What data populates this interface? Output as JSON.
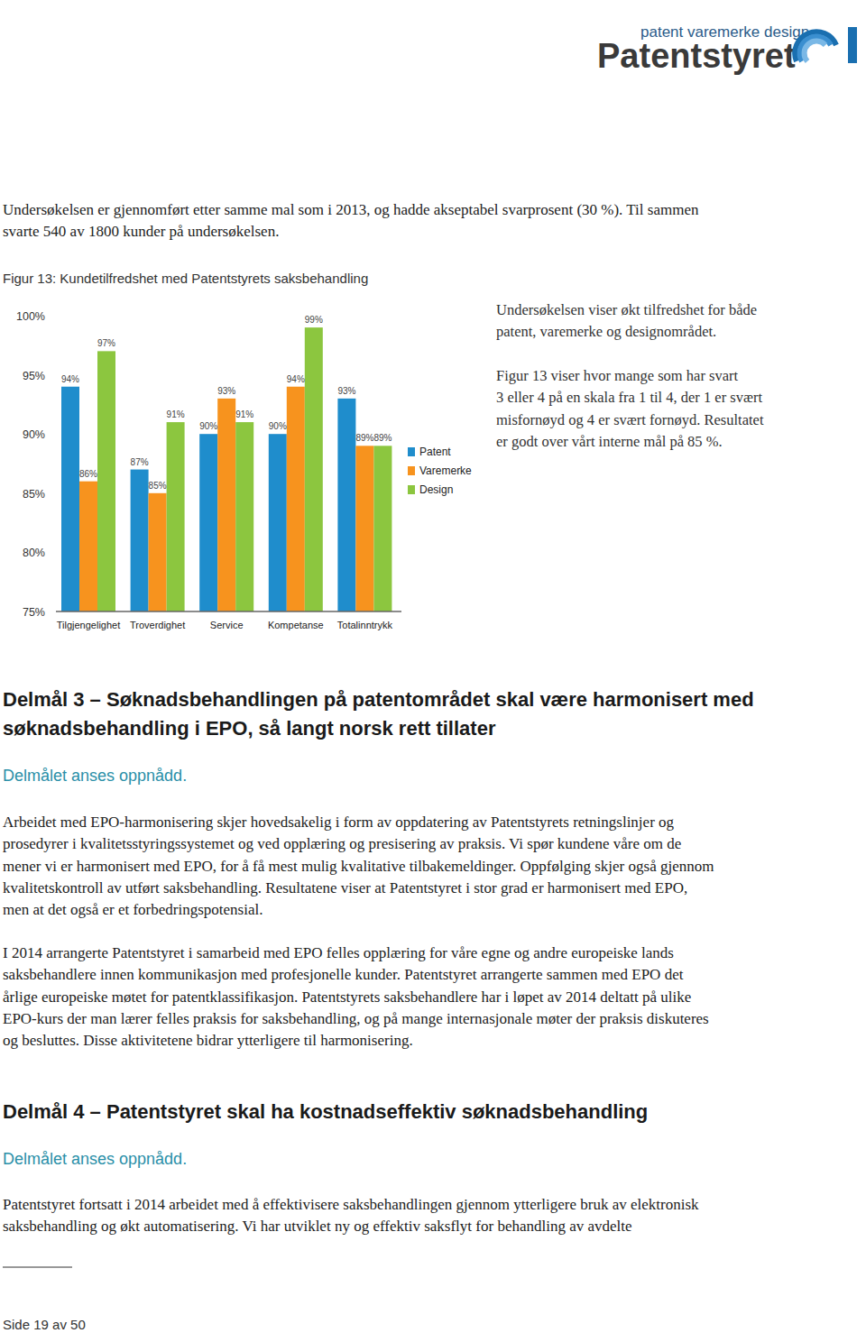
{
  "header": {
    "tagline": "patent varemerke design",
    "brand": "Patentstyret"
  },
  "intro": [
    "Undersøkelsen er gjennomført etter samme mal som i 2013, og hadde akseptabel svarprosent (30 %). Til sammen",
    "svarte 540 av 1800 kunder på undersøkelsen."
  ],
  "chart_data": {
    "type": "bar",
    "title": "Figur 13: Kundetilfredshet med Patentstyrets saksbehandling",
    "categories": [
      "Tilgjengelighet",
      "Troverdighet",
      "Service",
      "Kompetanse",
      "Totalinntrykk"
    ],
    "series": [
      {
        "name": "Patent",
        "color": "#1f8dcc",
        "values": [
          94,
          87,
          90,
          90,
          93
        ],
        "value_labels": [
          "94%",
          "87%",
          "90%",
          "90%",
          "93%"
        ]
      },
      {
        "name": "Varemerke",
        "color": "#f7931e",
        "values": [
          86,
          85,
          93,
          94,
          89
        ],
        "value_labels": [
          "86%",
          "85%",
          "93%",
          "94%",
          "89%"
        ]
      },
      {
        "name": "Design",
        "color": "#8cc63f",
        "values": [
          97,
          91,
          91,
          99,
          89
        ],
        "value_labels": [
          "97%",
          "91%",
          "91%",
          "99%",
          "89%"
        ]
      }
    ],
    "ylim": [
      75,
      100
    ],
    "yticks": [
      {
        "value": 75,
        "label": "75%"
      },
      {
        "value": 80,
        "label": "80%"
      },
      {
        "value": 85,
        "label": "85%"
      },
      {
        "value": 90,
        "label": "90%"
      },
      {
        "value": 95,
        "label": "95%"
      },
      {
        "value": 100,
        "label": "100%"
      }
    ],
    "grid": false,
    "legend": "right",
    "data_labels": true
  },
  "side_text": {
    "paragraphs": [
      [
        "Undersøkelsen viser økt tilfredshet for både",
        "patent, varemerke og designområdet."
      ],
      [
        "Figur 13 viser hvor mange som har svart",
        "3 eller 4 på en skala fra 1 til 4, der 1 er svært",
        "misfornøyd og 4 er svært fornøyd. Resultatet",
        "er godt over vårt interne mål på 85 %."
      ]
    ]
  },
  "sections": [
    {
      "heading": [
        "Delmål 3 – Søknadsbehandlingen på patentområdet skal være harmonisert med",
        "søknadsbehandling i EPO, så langt norsk rett tillater"
      ],
      "status": "Delmålet anses oppnådd.",
      "paragraphs": [
        [
          "Arbeidet med EPO-harmonisering skjer hovedsakelig i form av oppdatering av Patentstyrets retningslinjer og",
          "prosedyrer i kvalitetsstyringssystemet og ved opplæring og presisering av praksis. Vi spør kundene våre om de",
          "mener vi er harmonisert med EPO, for å få mest mulig kvalitative tilbakemeldinger. Oppfølging skjer også gjennom",
          "kvalitetskontroll av utført saksbehandling. Resultatene viser at Patentstyret i stor grad er harmonisert med EPO,",
          "men at det også er et forbedringspotensial."
        ],
        [
          "I 2014 arrangerte Patentstyret i samarbeid med EPO felles opplæring for våre egne og andre europeiske lands",
          "saksbehandlere innen kommunikasjon med profesjonelle kunder. Patentstyret arrangerte sammen med EPO det",
          "årlige europeiske møtet for patentklassifikasjon. Patentstyrets saksbehandlere har i løpet av 2014 deltatt på ulike",
          "EPO-kurs der man lærer felles praksis for saksbehandling, og på mange internasjonale møter der praksis diskuteres",
          "og besluttes. Disse aktivitetene bidrar ytterligere til harmonisering."
        ]
      ]
    },
    {
      "heading": [
        "Delmål 4 – Patentstyret skal ha kostnadseffektiv søknadsbehandling"
      ],
      "status": "Delmålet anses oppnådd.",
      "paragraphs": [
        [
          "Patentstyret fortsatt i 2014 arbeidet med å effektivisere saksbehandlingen gjennom ytterligere bruk av elektronisk",
          "saksbehandling og økt automatisering. Vi har utviklet ny og effektiv saksflyt for behandling av avdelte"
        ]
      ]
    }
  ],
  "footer": {
    "page": "Side 19 av 50"
  }
}
